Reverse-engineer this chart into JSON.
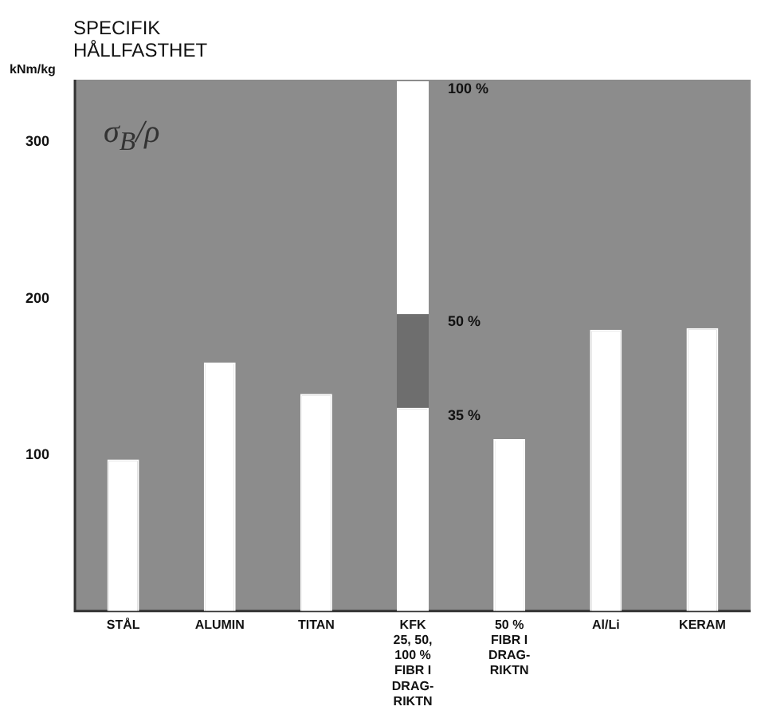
{
  "chart_data": {
    "type": "bar",
    "title": "SPECIFIK\nHÅLLFASTHET",
    "ylabel": "kNm/kg",
    "stacked": true,
    "categories": [
      "STÅL",
      "ALUMIN",
      "TITAN",
      "KFK\n25, 50,\n100 %\nFIBR I\nDRAG-\nRIKTN",
      "50 %\nFIBR I\nDRAG-\nRIKTN",
      "Al/Li",
      "KERAM"
    ],
    "series": [
      {
        "color": "#ffffff",
        "values": [
          97,
          159,
          139,
          130,
          110,
          180,
          181
        ]
      },
      {
        "color": "#6e6e6e",
        "values": [
          null,
          null,
          null,
          60,
          null,
          null,
          null
        ]
      },
      {
        "color": "#ffffff",
        "values": [
          null,
          null,
          null,
          149,
          null,
          null,
          null
        ]
      }
    ],
    "ylim": [
      0,
      340
    ],
    "yticks": [
      100,
      200,
      300
    ],
    "grid": false,
    "legend": false,
    "annotations": [
      "σ$_{B}$/ρ",
      {
        "text": "100 %",
        "x": "KFK\n25, 50,\n100 %\nFIBR I\nDRAG-\nRIKTN",
        "y": 339
      },
      {
        "text": "50 %",
        "x": "KFK\n25, 50,\n100 %\nFIBR I\nDRAG-\nRIKTN",
        "y": 190
      },
      {
        "text": "35 %",
        "x": "KFK\n25, 50,\n100 %\nFIBR I\nDRAG-\nRIKTN",
        "y": 130
      }
    ]
  }
}
